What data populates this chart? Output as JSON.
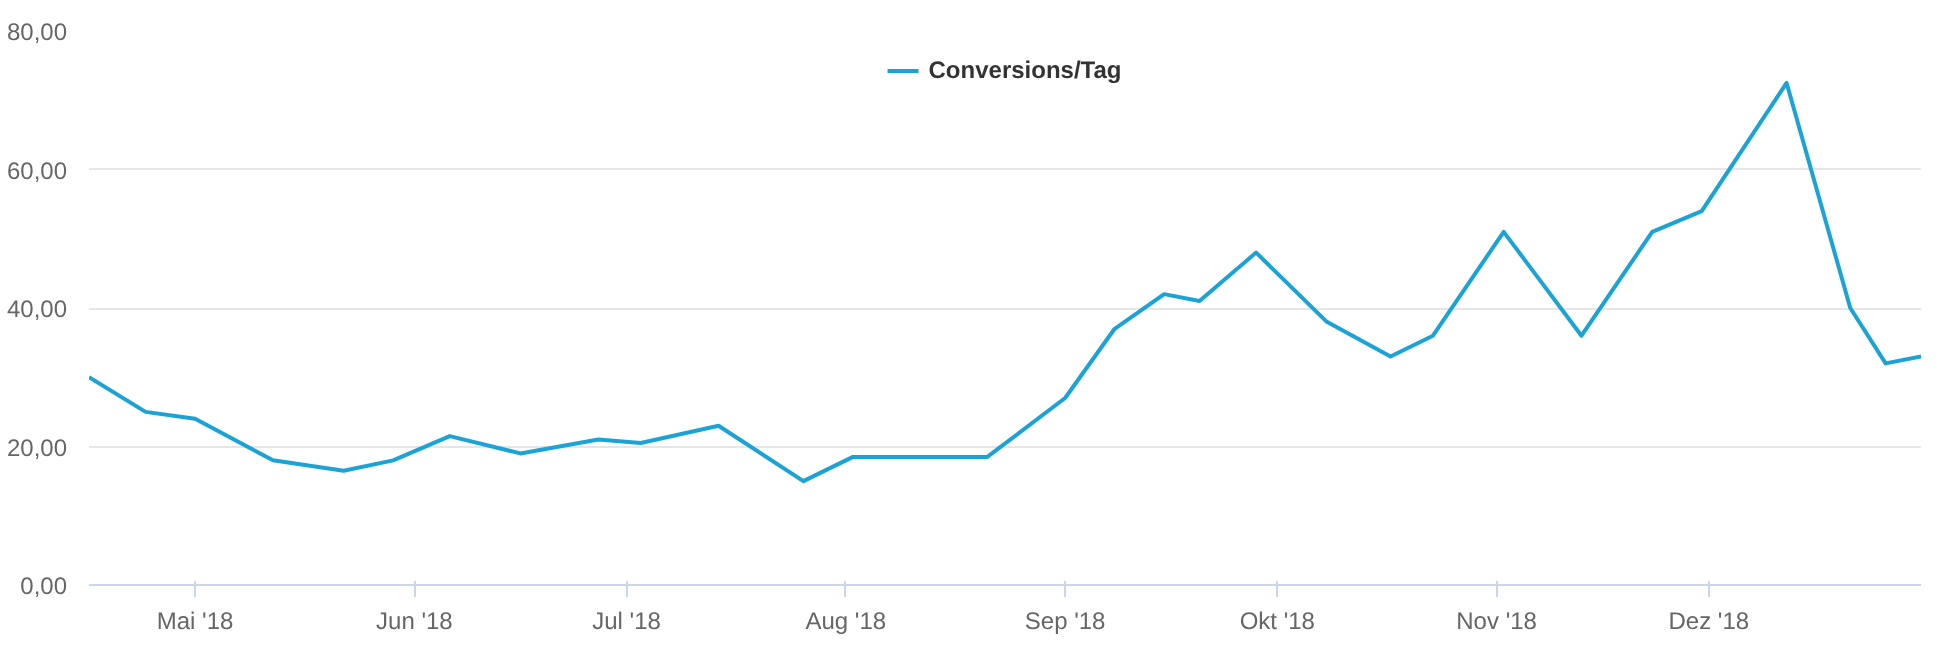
{
  "chart_data": {
    "type": "line",
    "x": [
      "2018-04-16",
      "2018-04-24",
      "2018-05-01",
      "2018-05-12",
      "2018-05-22",
      "2018-05-29",
      "2018-06-06",
      "2018-06-16",
      "2018-06-27",
      "2018-07-03",
      "2018-07-14",
      "2018-07-26",
      "2018-08-02",
      "2018-08-13",
      "2018-08-21",
      "2018-09-01",
      "2018-09-08",
      "2018-09-15",
      "2018-09-20",
      "2018-09-28",
      "2018-10-08",
      "2018-10-17",
      "2018-10-23",
      "2018-11-02",
      "2018-11-13",
      "2018-11-23",
      "2018-11-30",
      "2018-12-12",
      "2018-12-21",
      "2018-12-26",
      "2018-12-31"
    ],
    "series": [
      {
        "name": "Conversions/Tag",
        "color": "#1ba3d6",
        "values": [
          30,
          25,
          24,
          18,
          16.5,
          18,
          21.5,
          19,
          21,
          20.5,
          23,
          15,
          18.5,
          18.5,
          18.5,
          27,
          37,
          42,
          41,
          48,
          38,
          33,
          36,
          51,
          36,
          51,
          54,
          72.5,
          40,
          32,
          33
        ]
      }
    ],
    "xlim": [
      "2018-04-16",
      "2018-12-31"
    ],
    "xticks": [
      {
        "value": "2018-05-01",
        "label": "Mai '18"
      },
      {
        "value": "2018-06-01",
        "label": "Jun '18"
      },
      {
        "value": "2018-07-01",
        "label": "Jul '18"
      },
      {
        "value": "2018-08-01",
        "label": "Aug '18"
      },
      {
        "value": "2018-09-01",
        "label": "Sep '18"
      },
      {
        "value": "2018-10-01",
        "label": "Okt '18"
      },
      {
        "value": "2018-11-01",
        "label": "Nov '18"
      },
      {
        "value": "2018-12-01",
        "label": "Dez '18"
      }
    ],
    "ylim": [
      0,
      80
    ],
    "yticks": [
      {
        "value": 0,
        "label": "0,00"
      },
      {
        "value": 20,
        "label": "20,00"
      },
      {
        "value": 40,
        "label": "40,00"
      },
      {
        "value": 60,
        "label": "60,00"
      },
      {
        "value": 80,
        "label": "80,00"
      }
    ],
    "grid": "y",
    "legend": "top",
    "marker": "none",
    "line_style": "solid"
  }
}
